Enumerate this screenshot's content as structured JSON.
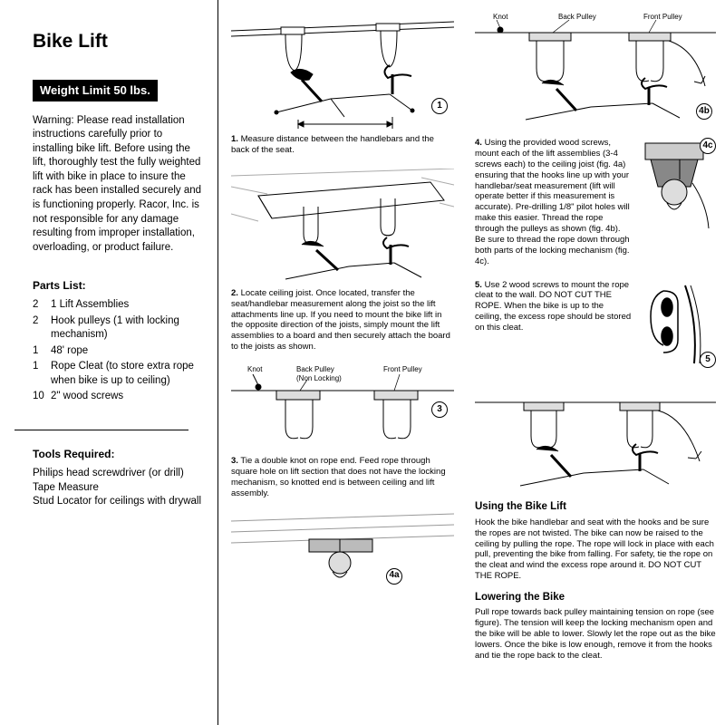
{
  "title": "Bike Lift",
  "weight_limit_badge": "Weight Limit 50 lbs.",
  "warning_text": "Warning:  Please read installation instructions carefully prior to installing bike lift. Before using the lift, thoroughly test the fully weighted lift with bike in place to insure the rack has been installed securely and is functioning properly. Racor, Inc. is not responsible for any damage resulting from improper installation, overloading, or product failure.",
  "parts_list_label": "Parts List:",
  "parts_list": [
    {
      "qty": "2",
      "desc": "1 Lift Assemblies"
    },
    {
      "qty": "2",
      "desc": "Hook pulleys (1 with locking mechanism)"
    },
    {
      "qty": "1",
      "desc": "48' rope"
    },
    {
      "qty": "1",
      "desc": "Rope Cleat (to store extra rope when bike is up to ceiling)"
    },
    {
      "qty": "10",
      "desc": "2\" wood screws"
    }
  ],
  "tools_label": "Tools Required:",
  "tools_list": [
    "Philips head screwdriver (or drill)",
    "Tape Measure",
    "Stud Locator for ceilings with drywall"
  ],
  "steps": {
    "s1": {
      "num": "1",
      "label_num": "1.",
      "text": " Measure distance between the handlebars and the back of the seat."
    },
    "s2": {
      "num": "2",
      "label_num": "2.",
      "text": " Locate ceiling joist. Once located, transfer the seat/handlebar measurement along the joist so the lift attachments line up. If you need to mount the bike lift in the opposite direction of the joists, simply mount the lift assemblies to a board and then securely attach the board to the joists as shown."
    },
    "s3": {
      "num": "3",
      "label_num": "3.",
      "text": " Tie a double knot on rope end. Feed rope through square hole on lift section that does not have the locking mechanism, so knotted end is between ceiling and lift assembly.",
      "labels": {
        "knot": "Knot",
        "back": "Back Pulley\n(Non Locking)",
        "front": "Front Pulley"
      }
    },
    "s4a": {
      "num": "4a"
    },
    "s4b": {
      "num": "4b",
      "labels": {
        "knot": "Knot",
        "back": "Back Pulley",
        "front": "Front Pulley"
      }
    },
    "s4": {
      "label_num": "4.",
      "num": "4c",
      "text": " Using the provided wood screws, mount each of the lift assemblies (3-4 screws each) to the ceiling joist (fig. 4a) ensuring that the hooks line up with your handlebar/seat measurement (lift will operate better if this measurement is accurate). Pre-drilling 1/8\" pilot holes will make this easier. Thread the rope through the pulleys as shown (fig. 4b). Be sure to thread the rope down through both parts of the locking mechanism (fig. 4c)."
    },
    "s5": {
      "num": "5",
      "label_num": "5.",
      "text": " Use 2 wood screws to mount the rope cleat to the wall. DO NOT CUT THE ROPE. When the bike is up to the ceiling, the excess rope should be stored on this cleat."
    }
  },
  "using": {
    "heading": "Using the Bike Lift",
    "text": "Hook the bike handlebar and seat with the hooks and be sure the ropes are not twisted. The bike can now be raised to the ceiling by pulling the rope. The rope will lock in place with each pull, preventing the bike from falling. For safety, tie the rope on the cleat and wind the excess rope around it. DO NOT CUT THE ROPE."
  },
  "lowering": {
    "heading": "Lowering the Bike",
    "text": "Pull rope towards back pulley maintaining tension on rope (see figure). The tension will keep the locking mechanism open and the bike will be able to lower. Slowly let the rope out as the bike lowers. Once the bike is low enough, remove it from the hooks and tie the rope back to the cleat."
  },
  "colors": {
    "text": "#000000",
    "bg": "#ffffff"
  }
}
